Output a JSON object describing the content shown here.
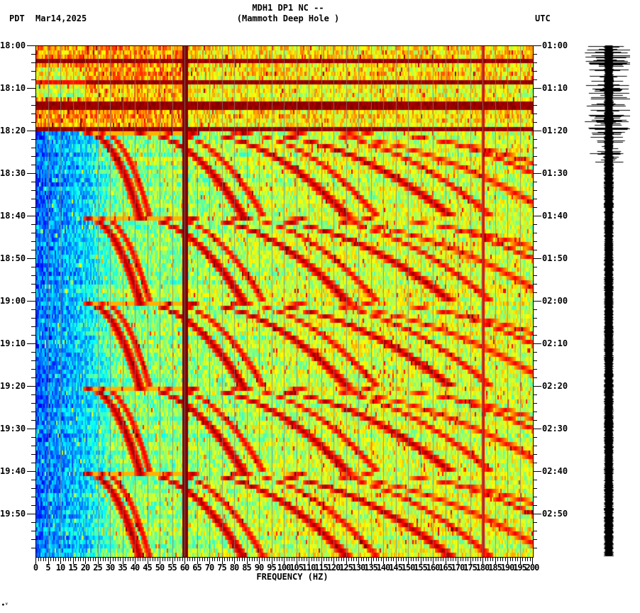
{
  "header": {
    "title_line1": "MDH1 DP1 NC --",
    "title_line2": "(Mammoth Deep Hole )",
    "timezone_left": "PDT",
    "date": "Mar14,2025",
    "timezone_right": "UTC"
  },
  "footer_mark": "∙ⱽ",
  "chart_data": {
    "type": "heatmap",
    "title": "MDH1 DP1 NC -- (Mammoth Deep Hole )",
    "subtitle": "Spectrogram with seismogram trace",
    "xlabel": "FREQUENCY (HZ)",
    "ylabel_left": "PDT",
    "ylabel_right": "UTC",
    "date": "Mar14,2025",
    "xlim": [
      0,
      200
    ],
    "x_ticks": [
      0,
      5,
      10,
      15,
      20,
      25,
      30,
      35,
      40,
      45,
      50,
      55,
      60,
      65,
      70,
      75,
      80,
      85,
      90,
      95,
      100,
      105,
      110,
      115,
      120,
      125,
      130,
      135,
      140,
      145,
      150,
      155,
      160,
      165,
      170,
      175,
      180,
      185,
      190,
      195,
      200
    ],
    "x_tick_labels": [
      "0",
      "5",
      "10",
      "15",
      "20",
      "25",
      "30",
      "35",
      "40",
      "45",
      "50",
      "55",
      "60",
      "65",
      "70",
      "75",
      "80",
      "85",
      "90",
      "95",
      "100",
      "105",
      "110",
      "115",
      "120",
      "125",
      "130",
      "135",
      "140",
      "145",
      "150",
      "155",
      "160",
      "165",
      "170",
      "175",
      "180",
      "185",
      "190",
      "195",
      "200"
    ],
    "y_ticks_left": [
      "18:00",
      "18:10",
      "18:20",
      "18:30",
      "18:40",
      "18:50",
      "19:00",
      "19:10",
      "19:20",
      "19:30",
      "19:40",
      "19:50"
    ],
    "y_ticks_right": [
      "01:00",
      "01:10",
      "01:20",
      "01:30",
      "01:40",
      "01:50",
      "02:00",
      "02:10",
      "02:20",
      "02:30",
      "02:40",
      "02:50"
    ],
    "time_span_minutes": 120,
    "minor_tick_minutes": 2,
    "colormap": "jet",
    "colors": {
      "low": "#0050ff",
      "mid": "#40ffc0",
      "high": "#ffff00",
      "peak": "#800000"
    },
    "features": {
      "constant_line_hz": 60,
      "secondary_line_hz": 180,
      "high_noise_interval": [
        "18:00",
        "18:20"
      ],
      "gliding_harmonics_repeat_minutes": 20,
      "glide_fundamental_hz_range": [
        21,
        42
      ],
      "harmonic_count": 6,
      "low_freq_quiet_band_hz": [
        0,
        20
      ]
    },
    "seismogram": {
      "large_amplitude_interval": [
        "18:00",
        "18:28"
      ],
      "steady_interval": [
        "18:28",
        "20:00"
      ]
    }
  }
}
